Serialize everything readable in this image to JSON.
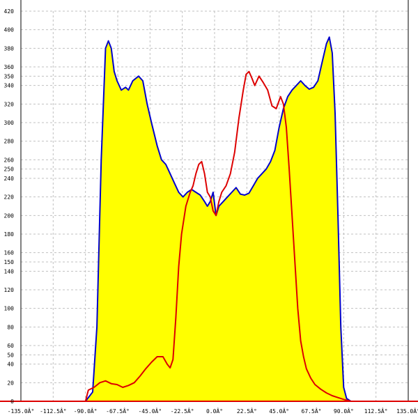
{
  "chart_data": {
    "type": "area",
    "x_unit": "degrees",
    "xlim": [
      -135,
      135
    ],
    "ylim": [
      0,
      420
    ],
    "grid": true,
    "x_ticks": [
      -135,
      -112.5,
      -90,
      -67.5,
      -45,
      -22.5,
      0,
      22.5,
      45,
      67.5,
      90,
      112.5,
      135
    ],
    "x_tick_labels": [
      "-135.0Â°",
      "-112.5Â°",
      "-90.0Â°",
      "-67.5Â°",
      "-45.0Â°",
      "-22.5Â°",
      "0.0Â°",
      "22.5Â°",
      "45.0Â°",
      "67.5Â°",
      "90.0Â°",
      "112.5Â°",
      "135.0Â°"
    ],
    "y_ticks": [
      0,
      20,
      40,
      50,
      60,
      80,
      100,
      120,
      140,
      150,
      160,
      180,
      200,
      220,
      240,
      250,
      260,
      280,
      300,
      320,
      340,
      350,
      360,
      380,
      400,
      420
    ],
    "y_tick_labels": [
      "0",
      "20",
      "40",
      "50",
      "60",
      "80",
      "100",
      "120",
      "140",
      "150",
      "160",
      "180",
      "200",
      "220",
      "240",
      "250",
      "260",
      "280",
      "300",
      "320",
      "340",
      "350",
      "360",
      "380",
      "400",
      "420"
    ],
    "series": [
      {
        "color": "#0000cc",
        "fill": "#ffff00",
        "points": [
          [
            -90,
            0
          ],
          [
            -85,
            10
          ],
          [
            -82,
            80
          ],
          [
            -79,
            260
          ],
          [
            -76,
            380
          ],
          [
            -74,
            388
          ],
          [
            -72,
            380
          ],
          [
            -70,
            355
          ],
          [
            -68,
            345
          ],
          [
            -65,
            335
          ],
          [
            -62,
            338
          ],
          [
            -60,
            335
          ],
          [
            -57,
            345
          ],
          [
            -53,
            350
          ],
          [
            -50,
            345
          ],
          [
            -47,
            320
          ],
          [
            -44,
            300
          ],
          [
            -40,
            275
          ],
          [
            -37,
            260
          ],
          [
            -34,
            255
          ],
          [
            -31,
            245
          ],
          [
            -28,
            235
          ],
          [
            -25,
            225
          ],
          [
            -22,
            220
          ],
          [
            -19,
            225
          ],
          [
            -16,
            228
          ],
          [
            -13,
            225
          ],
          [
            -10,
            222
          ],
          [
            -7,
            215
          ],
          [
            -5,
            210
          ],
          [
            -3,
            215
          ],
          [
            -1,
            225
          ],
          [
            1,
            200
          ],
          [
            3,
            210
          ],
          [
            6,
            215
          ],
          [
            9,
            220
          ],
          [
            12,
            225
          ],
          [
            15,
            230
          ],
          [
            18,
            223
          ],
          [
            21,
            222
          ],
          [
            24,
            224
          ],
          [
            27,
            232
          ],
          [
            30,
            240
          ],
          [
            33,
            245
          ],
          [
            36,
            250
          ],
          [
            39,
            258
          ],
          [
            42,
            270
          ],
          [
            45,
            295
          ],
          [
            48,
            315
          ],
          [
            51,
            328
          ],
          [
            54,
            335
          ],
          [
            57,
            340
          ],
          [
            60,
            345
          ],
          [
            63,
            340
          ],
          [
            66,
            336
          ],
          [
            69,
            338
          ],
          [
            72,
            345
          ],
          [
            75,
            365
          ],
          [
            78,
            385
          ],
          [
            80,
            392
          ],
          [
            82,
            375
          ],
          [
            84,
            310
          ],
          [
            86,
            200
          ],
          [
            88,
            80
          ],
          [
            90,
            15
          ],
          [
            92,
            3
          ],
          [
            95,
            0
          ]
        ]
      },
      {
        "color": "#dd0000",
        "fill": "none",
        "points": [
          [
            -90,
            0
          ],
          [
            -88,
            12
          ],
          [
            -84,
            15
          ],
          [
            -80,
            20
          ],
          [
            -76,
            22
          ],
          [
            -72,
            19
          ],
          [
            -68,
            18
          ],
          [
            -64,
            15
          ],
          [
            -60,
            17
          ],
          [
            -56,
            20
          ],
          [
            -52,
            27
          ],
          [
            -48,
            35
          ],
          [
            -44,
            42
          ],
          [
            -40,
            48
          ],
          [
            -36,
            48
          ],
          [
            -33,
            40
          ],
          [
            -31,
            36
          ],
          [
            -29,
            45
          ],
          [
            -27,
            90
          ],
          [
            -25,
            145
          ],
          [
            -23,
            180
          ],
          [
            -20,
            210
          ],
          [
            -17,
            225
          ],
          [
            -15,
            232
          ],
          [
            -13,
            245
          ],
          [
            -11,
            255
          ],
          [
            -9,
            258
          ],
          [
            -7,
            245
          ],
          [
            -5,
            225
          ],
          [
            -3,
            220
          ],
          [
            -1,
            205
          ],
          [
            1,
            200
          ],
          [
            3,
            215
          ],
          [
            5,
            225
          ],
          [
            8,
            232
          ],
          [
            11,
            245
          ],
          [
            14,
            268
          ],
          [
            17,
            305
          ],
          [
            20,
            335
          ],
          [
            22,
            352
          ],
          [
            24,
            355
          ],
          [
            26,
            348
          ],
          [
            28,
            340
          ],
          [
            31,
            350
          ],
          [
            34,
            343
          ],
          [
            37,
            335
          ],
          [
            40,
            318
          ],
          [
            43,
            315
          ],
          [
            46,
            328
          ],
          [
            48,
            320
          ],
          [
            50,
            295
          ],
          [
            52,
            250
          ],
          [
            54,
            200
          ],
          [
            56,
            150
          ],
          [
            58,
            100
          ],
          [
            60,
            65
          ],
          [
            62,
            48
          ],
          [
            64,
            35
          ],
          [
            67,
            25
          ],
          [
            70,
            18
          ],
          [
            74,
            13
          ],
          [
            78,
            9
          ],
          [
            82,
            6
          ],
          [
            86,
            4
          ],
          [
            90,
            2
          ],
          [
            95,
            0
          ]
        ]
      }
    ]
  }
}
